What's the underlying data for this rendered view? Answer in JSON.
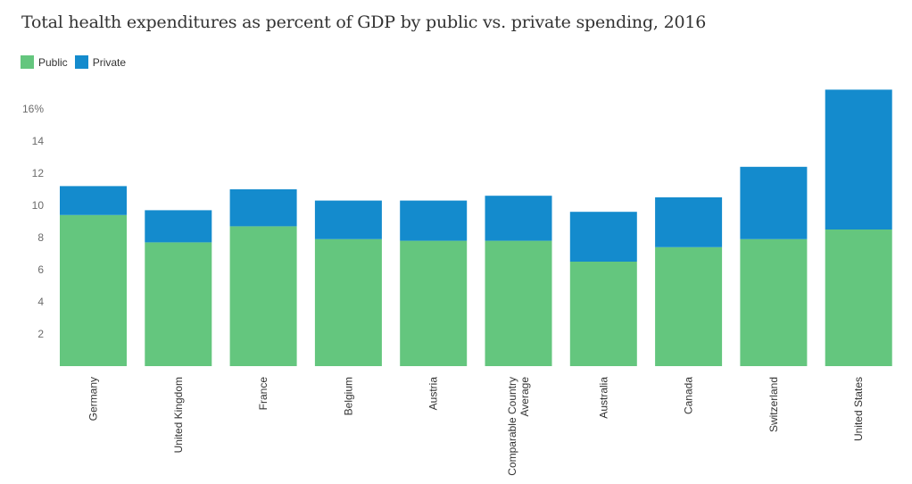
{
  "chart_data": {
    "type": "bar",
    "stacked": true,
    "title": "Total health expenditures as percent of GDP by public vs. private spending, 2016",
    "xlabel": "",
    "ylabel": "",
    "ylim": [
      0,
      17.5
    ],
    "yticks": [
      2,
      4,
      6,
      8,
      10,
      12,
      14,
      16
    ],
    "ytick_labels": [
      "2",
      "4",
      "6",
      "8",
      "10",
      "12",
      "14",
      "16%"
    ],
    "grid": false,
    "legend_position": "top-left",
    "categories": [
      "Germany",
      "United Kingdom",
      "France",
      "Belgium",
      "Austria",
      "Comparable Country Average",
      "Australia",
      "Canada",
      "Switzerland",
      "United States"
    ],
    "category_label_lines": [
      [
        "Germany"
      ],
      [
        "United Kingdom"
      ],
      [
        "France"
      ],
      [
        "Belgium"
      ],
      [
        "Austria"
      ],
      [
        "Comparable Country",
        "Average"
      ],
      [
        "Australia"
      ],
      [
        "Canada"
      ],
      [
        "Switzerland"
      ],
      [
        "United States"
      ]
    ],
    "series": [
      {
        "name": "Public",
        "color": "#64c67e",
        "values": [
          9.4,
          7.7,
          8.7,
          7.9,
          7.8,
          7.8,
          6.5,
          7.4,
          7.9,
          8.5
        ]
      },
      {
        "name": "Private",
        "color": "#148bcd",
        "values": [
          1.8,
          2.0,
          2.3,
          2.4,
          2.5,
          2.8,
          3.1,
          3.1,
          4.5,
          8.7
        ]
      }
    ]
  },
  "legend": {
    "items": [
      {
        "label": "Public",
        "color": "#64c67e"
      },
      {
        "label": "Private",
        "color": "#148bcd"
      }
    ]
  }
}
